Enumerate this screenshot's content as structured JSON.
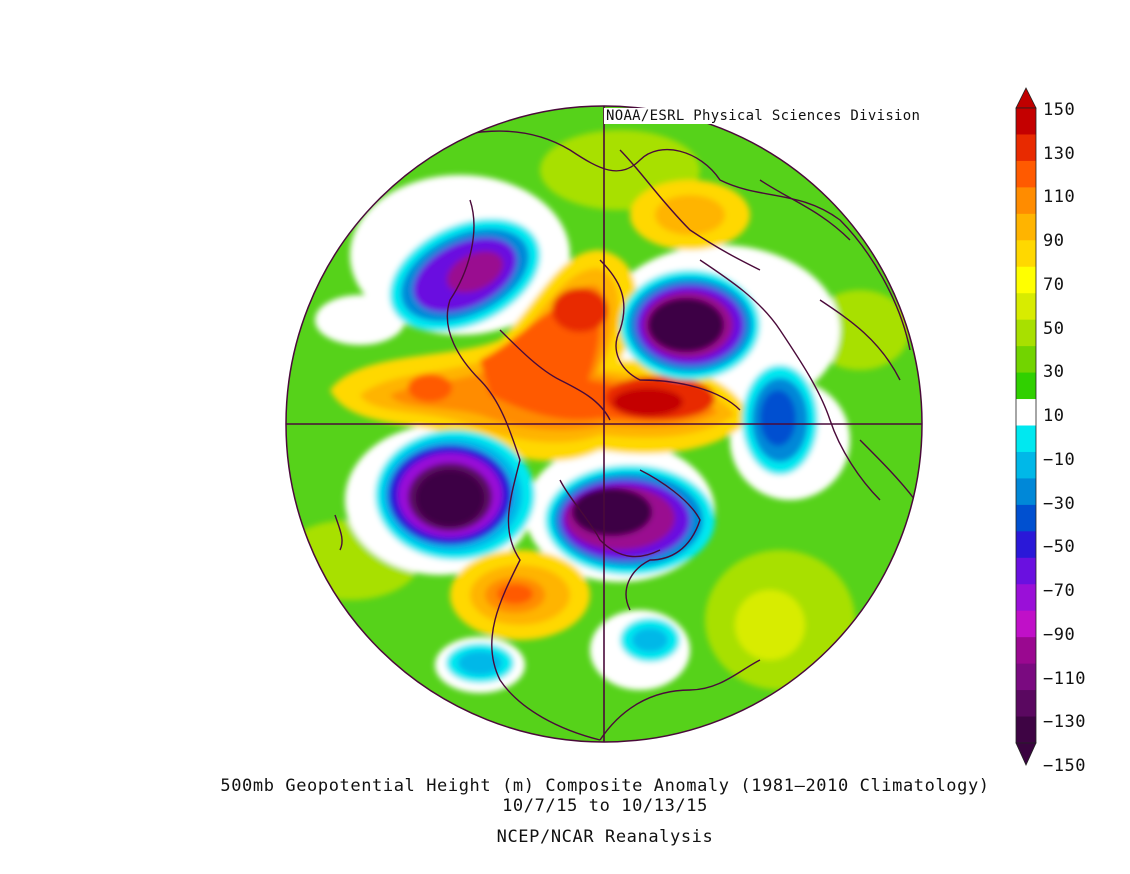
{
  "credit": "NOAA/ESRL Physical Sciences Division",
  "caption": {
    "line1": "500mb Geopotential Height (m) Composite Anomaly (1981–2010 Climatology)",
    "line2": "10/7/15   to 10/13/15",
    "line3": "NCEP/NCAR Reanalysis"
  },
  "colorbar": {
    "labels": [
      "150",
      "130",
      "110",
      "90",
      "70",
      "50",
      "30",
      "10",
      "−10",
      "−30",
      "−50",
      "−70",
      "−90",
      "−110",
      "−130",
      "−150"
    ],
    "colors": [
      "#c40000",
      "#e82a00",
      "#ff5a00",
      "#ff8c00",
      "#ffb400",
      "#ffd800",
      "#ffff00",
      "#d8ec00",
      "#a8e000",
      "#72d400",
      "#30d000",
      "#ffffff",
      "#00e8f0",
      "#00b8e8",
      "#0088d8",
      "#0050d0",
      "#2a18d8",
      "#6a10e0",
      "#9a10d8",
      "#c010c8",
      "#9a0890",
      "#7a0a80",
      "#5a0860",
      "#3e0444"
    ],
    "max_arrow_color": "#c00000",
    "min_arrow_color": "#3a0440"
  },
  "map_colors": {
    "bg_green": "#56d21a",
    "outline": "#4a0a3a"
  }
}
